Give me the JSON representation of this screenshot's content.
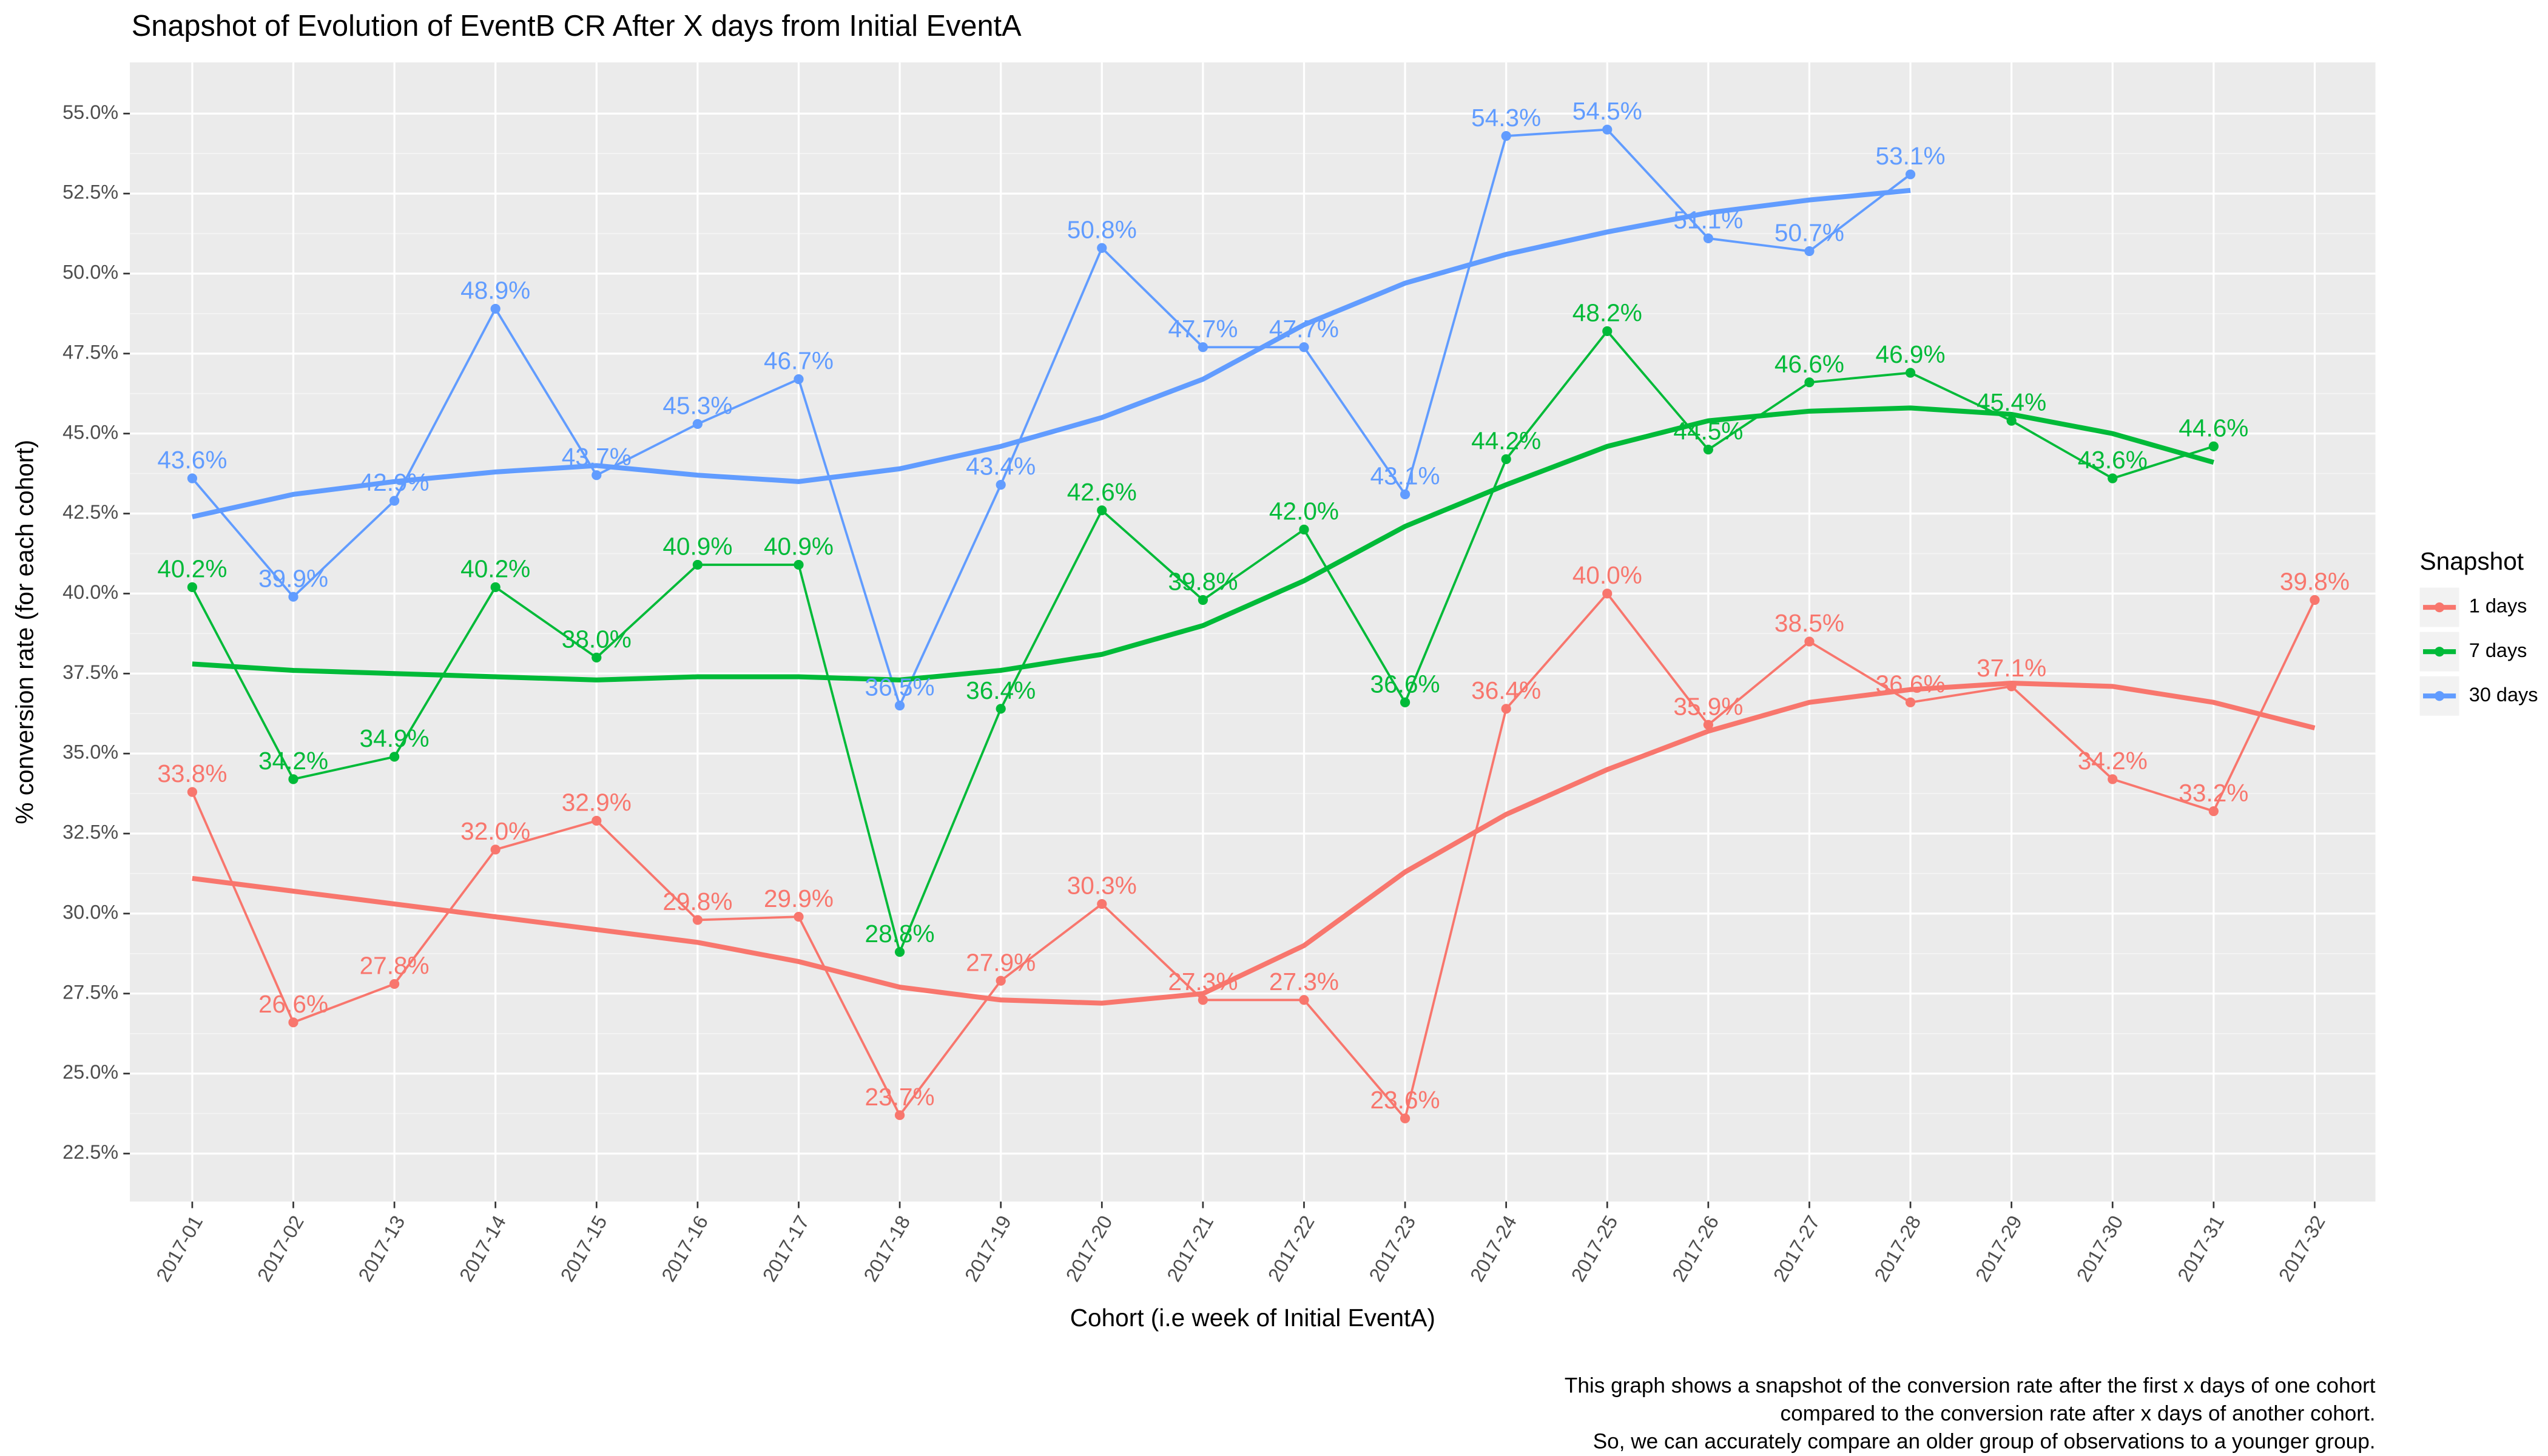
{
  "chart_data": {
    "type": "line",
    "title": "Snapshot of Evolution of EventB CR After X days from Initial EventA",
    "x_label": "Cohort (i.e week of Initial EventA)",
    "y_label": "% conversion rate (for each cohort)",
    "legend_title": "Snapshot",
    "legend": "right",
    "grid": true,
    "caption": [
      "This graph shows a snapshot of the conversion rate after the first x days of one cohort",
      "compared to the conversion rate after x days of another cohort.",
      "So, we can accurately compare an older group of observations to a younger group."
    ],
    "categories": [
      "2017-01",
      "2017-02",
      "2017-13",
      "2017-14",
      "2017-15",
      "2017-16",
      "2017-17",
      "2017-18",
      "2017-19",
      "2017-20",
      "2017-21",
      "2017-22",
      "2017-23",
      "2017-24",
      "2017-25",
      "2017-26",
      "2017-27",
      "2017-28",
      "2017-29",
      "2017-30",
      "2017-31",
      "2017-32"
    ],
    "ylim": [
      21.0,
      56.6
    ],
    "yticks": [
      {
        "value": 22.5,
        "label": "22.5%"
      },
      {
        "value": 25.0,
        "label": "25.0%"
      },
      {
        "value": 27.5,
        "label": "27.5%"
      },
      {
        "value": 30.0,
        "label": "30.0%"
      },
      {
        "value": 32.5,
        "label": "32.5%"
      },
      {
        "value": 35.0,
        "label": "35.0%"
      },
      {
        "value": 37.5,
        "label": "37.5%"
      },
      {
        "value": 40.0,
        "label": "40.0%"
      },
      {
        "value": 42.5,
        "label": "42.5%"
      },
      {
        "value": 45.0,
        "label": "45.0%"
      },
      {
        "value": 47.5,
        "label": "47.5%"
      },
      {
        "value": 50.0,
        "label": "50.0%"
      },
      {
        "value": 52.5,
        "label": "52.5%"
      },
      {
        "value": 55.0,
        "label": "55.0%"
      }
    ],
    "series": [
      {
        "name": "1 days",
        "color": "#F8766D",
        "values": [
          33.8,
          26.6,
          27.8,
          32.0,
          32.9,
          29.8,
          29.9,
          23.7,
          27.9,
          30.3,
          27.3,
          27.3,
          23.6,
          36.4,
          40.0,
          35.9,
          38.5,
          36.6,
          37.1,
          34.2,
          33.2,
          39.8
        ],
        "value_labels": [
          "33.8%",
          "26.6%",
          "27.8%",
          "32.0%",
          "32.9%",
          "29.8%",
          "29.9%",
          "23.7%",
          "27.9%",
          "30.3%",
          "27.3%",
          "27.3%",
          "23.6%",
          "36.4%",
          "40.0%",
          "35.9%",
          "38.5%",
          "36.6%",
          "37.1%",
          "34.2%",
          "33.2%",
          "39.8%"
        ],
        "trend": [
          31.1,
          30.7,
          30.3,
          29.9,
          29.5,
          29.1,
          28.5,
          27.7,
          27.3,
          27.2,
          27.5,
          29.0,
          31.3,
          33.1,
          34.5,
          35.7,
          36.6,
          37.0,
          37.2,
          37.1,
          36.6,
          35.8
        ]
      },
      {
        "name": "7 days",
        "color": "#00BA38",
        "values": [
          40.2,
          34.2,
          34.9,
          40.2,
          38.0,
          40.9,
          40.9,
          28.8,
          36.4,
          42.6,
          39.8,
          42.0,
          36.6,
          44.2,
          48.2,
          44.5,
          46.6,
          46.9,
          45.4,
          43.6,
          44.6,
          null
        ],
        "value_labels": [
          "40.2%",
          "34.2%",
          "34.9%",
          "40.2%",
          "38.0%",
          "40.9%",
          "40.9%",
          "28.8%",
          "36.4%",
          "42.6%",
          "39.8%",
          "42.0%",
          "36.6%",
          "44.2%",
          "48.2%",
          "44.5%",
          "46.6%",
          "46.9%",
          "45.4%",
          "43.6%",
          "44.6%",
          null
        ],
        "trend": [
          37.8,
          37.6,
          37.5,
          37.4,
          37.3,
          37.4,
          37.4,
          37.3,
          37.6,
          38.1,
          39.0,
          40.4,
          42.1,
          43.4,
          44.6,
          45.4,
          45.7,
          45.8,
          45.6,
          45.0,
          44.1,
          null
        ]
      },
      {
        "name": "30 days",
        "color": "#619CFF",
        "values": [
          43.6,
          39.9,
          42.9,
          48.9,
          43.7,
          45.3,
          46.7,
          36.5,
          43.4,
          50.8,
          47.7,
          47.7,
          43.1,
          54.3,
          54.5,
          51.1,
          50.7,
          53.1,
          null,
          null,
          null,
          null
        ],
        "value_labels": [
          "43.6%",
          "39.9%",
          "42.9%",
          "48.9%",
          "43.7%",
          "45.3%",
          "46.7%",
          "36.5%",
          "43.4%",
          "50.8%",
          "47.7%",
          "47.7%",
          "43.1%",
          "54.3%",
          "54.5%",
          "51.1%",
          "50.7%",
          "53.1%",
          null,
          null,
          null,
          null
        ],
        "trend": [
          42.4,
          43.1,
          43.5,
          43.8,
          44.0,
          43.7,
          43.5,
          43.9,
          44.6,
          45.5,
          46.7,
          48.4,
          49.7,
          50.6,
          51.3,
          51.9,
          52.3,
          52.6,
          null,
          null,
          null,
          null
        ]
      }
    ]
  }
}
